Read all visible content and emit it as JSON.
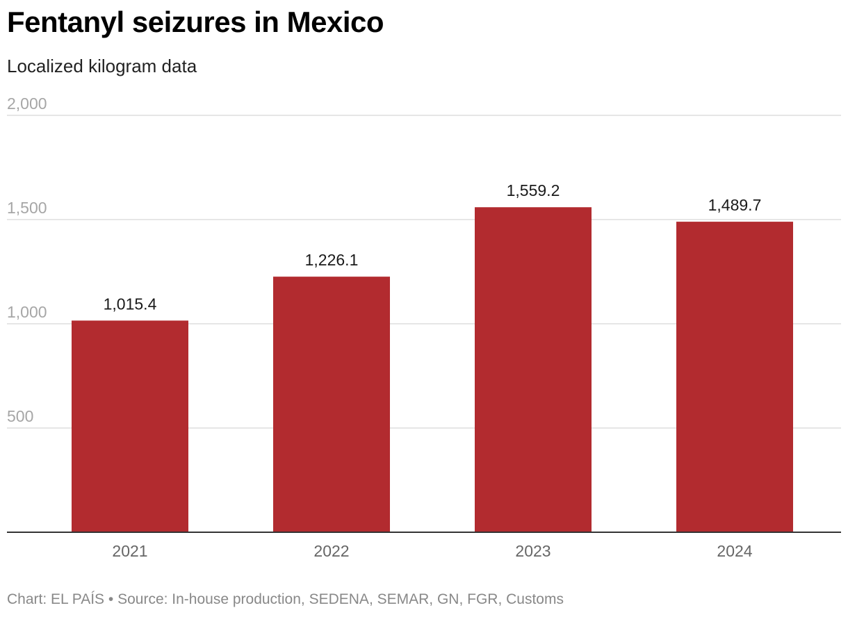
{
  "header": {
    "title": "Fentanyl seizures in Mexico",
    "subtitle": "Localized kilogram data"
  },
  "footer": {
    "text": "Chart: EL PAÍS • Source: In-house production, SEDENA, SEMAR, GN, FGR, Customs"
  },
  "colors": {
    "bar": "#b22b2f",
    "gridline": "#dddddd",
    "baseline": "#333333",
    "tick_label": "#a6a6a6",
    "category_label": "#666666",
    "value_label": "#1a1a1a"
  },
  "chart_data": {
    "type": "bar",
    "title": "Fentanyl seizures in Mexico",
    "subtitle": "Localized kilogram data",
    "categories": [
      "2021",
      "2022",
      "2023",
      "2024"
    ],
    "values": [
      1015.4,
      1226.1,
      1559.2,
      1489.7
    ],
    "value_labels": [
      "1,015.4",
      "1,226.1",
      "1,559.2",
      "1,489.7"
    ],
    "ylim": [
      0,
      2000
    ],
    "yticks": [
      500,
      1000,
      1500,
      2000
    ],
    "ytick_labels": [
      "500",
      "1,000",
      "1,500",
      "2,000"
    ],
    "grid": true,
    "legend": "none"
  }
}
